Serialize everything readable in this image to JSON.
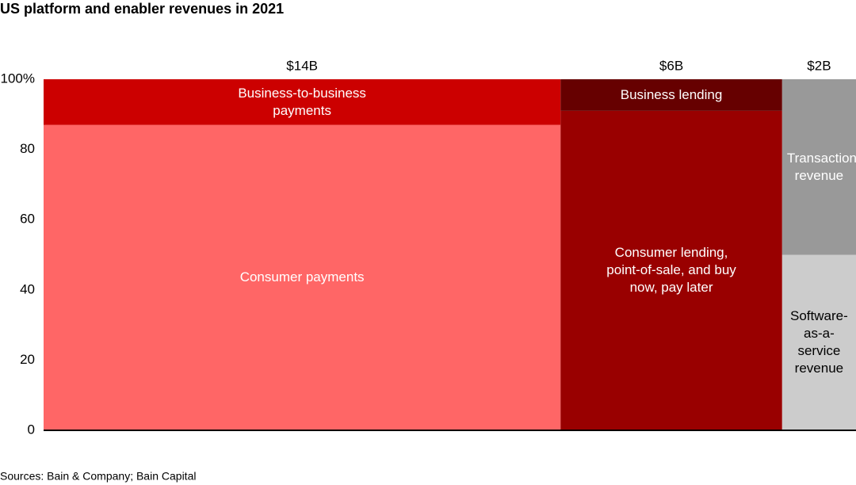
{
  "chart_data": {
    "type": "marimekko",
    "title": "US platform and enabler revenues in 2021",
    "source": "Sources: Bain & Company; Bain Capital",
    "values": [
      14,
      6,
      2
    ],
    "value_labels": [
      "$14B",
      "$6B",
      "$2B"
    ],
    "series": [
      {
        "name": "Consumer payments",
        "color": "#ff6666",
        "text_color": "#ffffff",
        "values": [
          87,
          null,
          null
        ]
      },
      {
        "name": "Business-to-business payments",
        "color": "#cc0000",
        "text_color": "#ffffff",
        "values": [
          13,
          null,
          null
        ]
      },
      {
        "name": "Consumer lending, point-of-sale, and buy now, pay later",
        "color": "#990000",
        "text_color": "#ffffff",
        "values": [
          null,
          91,
          null
        ]
      },
      {
        "name": "Business lending",
        "color": "#660000",
        "text_color": "#ffffff",
        "values": [
          null,
          9,
          null
        ]
      },
      {
        "name": "Software-as-a-service revenue",
        "color": "#cccccc",
        "text_color": "#000000",
        "values": [
          null,
          null,
          50
        ]
      },
      {
        "name": "Transaction revenue",
        "color": "#999999",
        "text_color": "#ffffff",
        "values": [
          null,
          null,
          50
        ]
      }
    ],
    "ylim": [
      0,
      100
    ],
    "yticks": [
      0,
      20,
      40,
      60,
      80,
      {
        "value": 100,
        "label": "100%"
      }
    ]
  }
}
